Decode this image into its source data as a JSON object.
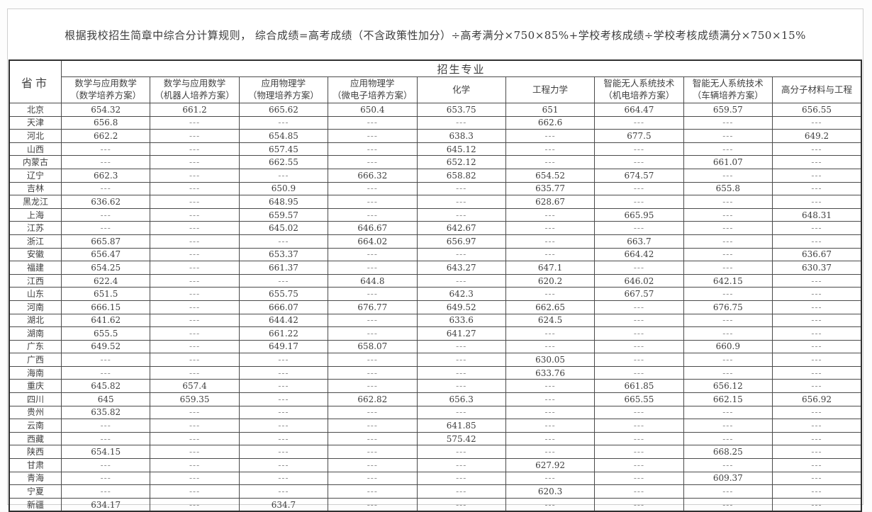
{
  "page": {
    "note": "根据我校招生简章中综合分计算规则， 综合成绩=高考成绩（不含政策性加分）÷高考满分×750×85%+学校考核成绩÷学校考核成绩满分×750×15%"
  },
  "colors": {
    "table_border": "#4a4a4a",
    "outer_border": "#303030",
    "text": "#3f3f3f",
    "dash_text": "#8a8a8a",
    "page_border": "#cfcfcf",
    "page_background": "#ffffff"
  },
  "table": {
    "corner_label": "省市",
    "group_header": "招生专业",
    "empty_marker": "---",
    "columns": [
      {
        "lines": [
          "数学与应用数学",
          "（数学培养方案）"
        ]
      },
      {
        "lines": [
          "数学与应用数学",
          "（机器人培养方案）"
        ]
      },
      {
        "lines": [
          "应用物理学",
          "（物理培养方案）"
        ]
      },
      {
        "lines": [
          "应用物理学",
          "（微电子培养方案）"
        ]
      },
      {
        "lines": [
          "化学"
        ]
      },
      {
        "lines": [
          "工程力学"
        ]
      },
      {
        "lines": [
          "智能无人系统技术",
          "（机电培养方案）"
        ]
      },
      {
        "lines": [
          "智能无人系统技术",
          "（车辆培养方案）"
        ]
      },
      {
        "lines": [
          "高分子材料与工程"
        ]
      }
    ],
    "rows": [
      {
        "province": "北京",
        "values": [
          "654.32",
          "661.2",
          "665.62",
          "650.4",
          "653.75",
          "651",
          "664.47",
          "659.57",
          "656.55"
        ]
      },
      {
        "province": "天津",
        "values": [
          "656.8",
          "---",
          "---",
          "---",
          "---",
          "662.6",
          "---",
          "---",
          "---"
        ]
      },
      {
        "province": "河北",
        "values": [
          "662.2",
          "---",
          "654.85",
          "---",
          "638.3",
          "---",
          "677.5",
          "---",
          "649.2"
        ]
      },
      {
        "province": "山西",
        "values": [
          "---",
          "---",
          "657.45",
          "---",
          "645.12",
          "---",
          "---",
          "---",
          "---"
        ]
      },
      {
        "province": "内蒙古",
        "values": [
          "---",
          "---",
          "662.55",
          "---",
          "652.12",
          "---",
          "---",
          "661.07",
          "---"
        ]
      },
      {
        "province": "辽宁",
        "values": [
          "662.3",
          "---",
          "---",
          "666.32",
          "658.82",
          "654.52",
          "674.57",
          "---",
          "---"
        ]
      },
      {
        "province": "吉林",
        "values": [
          "---",
          "---",
          "650.9",
          "---",
          "---",
          "635.77",
          "---",
          "655.8",
          "---"
        ]
      },
      {
        "province": "黑龙江",
        "values": [
          "636.62",
          "---",
          "648.95",
          "---",
          "---",
          "628.67",
          "---",
          "---",
          "---"
        ]
      },
      {
        "province": "上海",
        "values": [
          "---",
          "---",
          "659.57",
          "---",
          "---",
          "---",
          "665.95",
          "---",
          "648.31"
        ]
      },
      {
        "province": "江苏",
        "values": [
          "---",
          "---",
          "645.02",
          "646.67",
          "642.67",
          "---",
          "---",
          "---",
          "---"
        ]
      },
      {
        "province": "浙江",
        "values": [
          "665.87",
          "---",
          "---",
          "664.02",
          "656.97",
          "---",
          "663.7",
          "---",
          "---"
        ]
      },
      {
        "province": "安徽",
        "values": [
          "656.47",
          "---",
          "653.37",
          "---",
          "---",
          "---",
          "664.42",
          "---",
          "636.67"
        ]
      },
      {
        "province": "福建",
        "values": [
          "654.25",
          "---",
          "661.37",
          "---",
          "643.27",
          "647.1",
          "---",
          "---",
          "630.37"
        ]
      },
      {
        "province": "江西",
        "values": [
          "622.4",
          "---",
          "---",
          "644.8",
          "---",
          "620.2",
          "646.02",
          "642.15",
          "---"
        ]
      },
      {
        "province": "山东",
        "values": [
          "651.5",
          "---",
          "655.75",
          "---",
          "642.3",
          "---",
          "667.57",
          "---",
          "---"
        ]
      },
      {
        "province": "河南",
        "values": [
          "666.15",
          "---",
          "666.07",
          "676.77",
          "649.52",
          "662.65",
          "---",
          "676.75",
          "---"
        ]
      },
      {
        "province": "湖北",
        "values": [
          "641.62",
          "---",
          "644.42",
          "---",
          "633.6",
          "624.5",
          "---",
          "---",
          "---"
        ]
      },
      {
        "province": "湖南",
        "values": [
          "655.5",
          "---",
          "661.22",
          "---",
          "641.27",
          "---",
          "---",
          "---",
          "---"
        ]
      },
      {
        "province": "广东",
        "values": [
          "649.52",
          "---",
          "649.17",
          "658.07",
          "---",
          "---",
          "---",
          "660.9",
          "---"
        ]
      },
      {
        "province": "广西",
        "values": [
          "---",
          "---",
          "---",
          "---",
          "---",
          "630.05",
          "---",
          "---",
          "---"
        ]
      },
      {
        "province": "海南",
        "values": [
          "---",
          "---",
          "---",
          "---",
          "---",
          "633.76",
          "---",
          "---",
          "---"
        ]
      },
      {
        "province": "重庆",
        "values": [
          "645.82",
          "657.4",
          "---",
          "---",
          "---",
          "---",
          "661.85",
          "656.12",
          "---"
        ]
      },
      {
        "province": "四川",
        "values": [
          "645",
          "659.35",
          "---",
          "662.82",
          "656.3",
          "---",
          "665.55",
          "662.15",
          "656.92"
        ]
      },
      {
        "province": "贵州",
        "values": [
          "635.82",
          "---",
          "---",
          "---",
          "---",
          "---",
          "---",
          "---",
          "---"
        ]
      },
      {
        "province": "云南",
        "values": [
          "---",
          "---",
          "---",
          "---",
          "641.85",
          "---",
          "---",
          "---",
          "---"
        ]
      },
      {
        "province": "西藏",
        "values": [
          "---",
          "---",
          "---",
          "---",
          "575.42",
          "---",
          "---",
          "---",
          "---"
        ]
      },
      {
        "province": "陕西",
        "values": [
          "654.15",
          "---",
          "---",
          "---",
          "---",
          "---",
          "---",
          "668.25",
          "---"
        ]
      },
      {
        "province": "甘肃",
        "values": [
          "---",
          "---",
          "---",
          "---",
          "---",
          "627.92",
          "---",
          "---",
          "---"
        ]
      },
      {
        "province": "青海",
        "values": [
          "---",
          "---",
          "---",
          "---",
          "---",
          "---",
          "---",
          "609.37",
          "---"
        ]
      },
      {
        "province": "宁夏",
        "values": [
          "---",
          "---",
          "---",
          "---",
          "---",
          "620.3",
          "---",
          "---",
          "---"
        ]
      },
      {
        "province": "新疆",
        "values": [
          "634.17",
          "---",
          "634.7",
          "---",
          "---",
          "---",
          "---",
          "---",
          "---"
        ]
      }
    ]
  }
}
